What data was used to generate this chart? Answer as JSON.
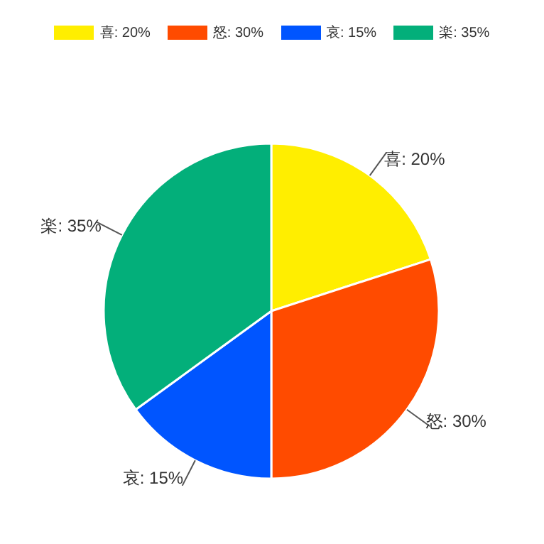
{
  "chart_data": {
    "type": "pie",
    "categories": [
      "喜: 20%",
      "怒: 30%",
      "哀: 15%",
      "楽: 35%"
    ],
    "values": [
      20,
      30,
      15,
      35
    ],
    "colors": [
      "#ffee00",
      "#ff4b00",
      "#0055ff",
      "#03af7a"
    ],
    "legend": "top"
  }
}
